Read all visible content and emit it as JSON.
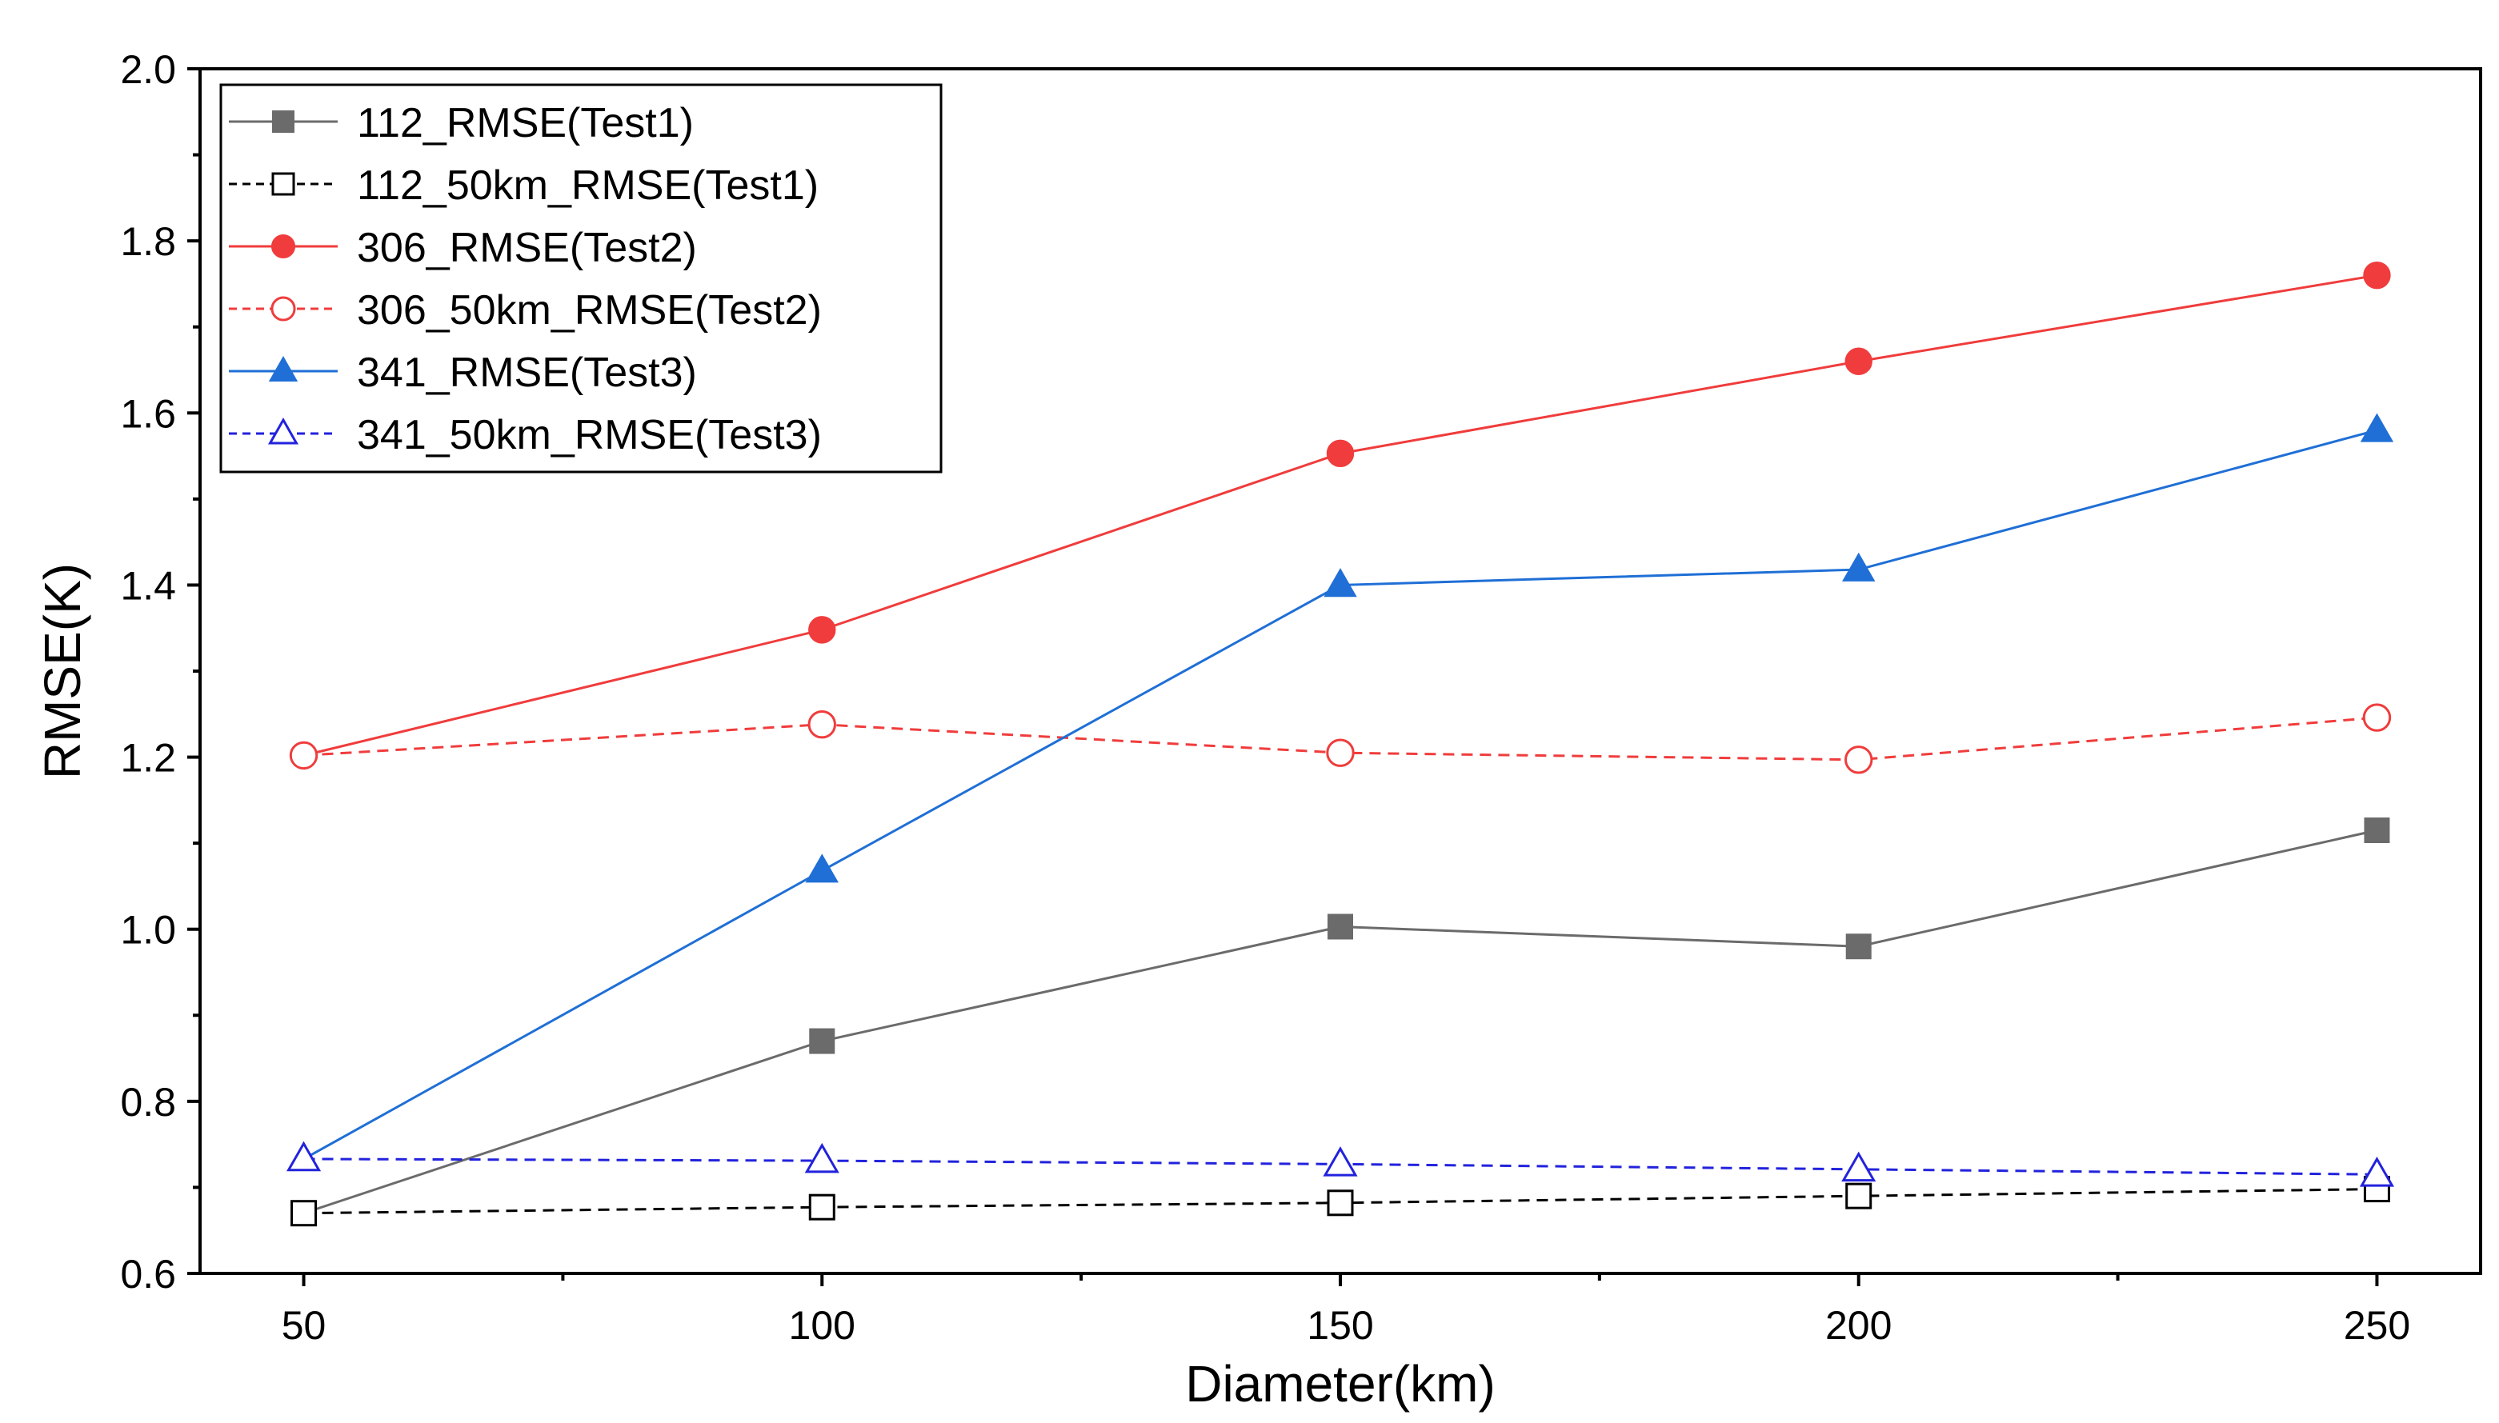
{
  "chart_data": {
    "type": "line",
    "title": "",
    "xlabel": "Diameter(km)",
    "ylabel": "RMSE(K)",
    "xlim": [
      40,
      260
    ],
    "ylim": [
      0.6,
      2.0
    ],
    "x_ticks": [
      50,
      100,
      150,
      200,
      250
    ],
    "x_tick_labels": [
      "50",
      "100",
      "150",
      "200",
      "250"
    ],
    "y_ticks": [
      0.6,
      0.8,
      1.0,
      1.2,
      1.4,
      1.6,
      1.8,
      2.0
    ],
    "y_tick_labels": [
      "0.6",
      "0.8",
      "1.0",
      "1.2",
      "1.4",
      "1.6",
      "1.8",
      "2.0"
    ],
    "x": [
      50,
      100,
      150,
      200,
      250
    ],
    "legend_position": "top-left",
    "series": [
      {
        "name": "112_RMSE(Test1)",
        "color": "#6b6b6b",
        "dashed": false,
        "marker": "square",
        "filled": true,
        "values": [
          0.67,
          0.87,
          1.003,
          0.98,
          1.115
        ]
      },
      {
        "name": "112_50km_RMSE(Test1)",
        "color": "#000000",
        "dashed": true,
        "marker": "square",
        "filled": false,
        "values": [
          0.67,
          0.677,
          0.682,
          0.69,
          0.698
        ]
      },
      {
        "name": "306_RMSE(Test2)",
        "color": "#f03c3c",
        "dashed": false,
        "marker": "circle",
        "filled": true,
        "values": [
          1.202,
          1.348,
          1.553,
          1.66,
          1.76
        ]
      },
      {
        "name": "306_50km_RMSE(Test2)",
        "color": "#f03c3c",
        "dashed": true,
        "marker": "circle",
        "filled": false,
        "values": [
          1.202,
          1.238,
          1.205,
          1.197,
          1.246
        ]
      },
      {
        "name": "341_RMSE(Test3)",
        "color": "#1f6fd6",
        "dashed": false,
        "marker": "triangle",
        "filled": true,
        "values": [
          0.733,
          1.068,
          1.4,
          1.418,
          1.58
        ]
      },
      {
        "name": "341_50km_RMSE(Test3)",
        "color": "#2222dd",
        "dashed": true,
        "marker": "triangle",
        "filled": false,
        "values": [
          0.733,
          0.731,
          0.727,
          0.721,
          0.715
        ]
      }
    ]
  }
}
